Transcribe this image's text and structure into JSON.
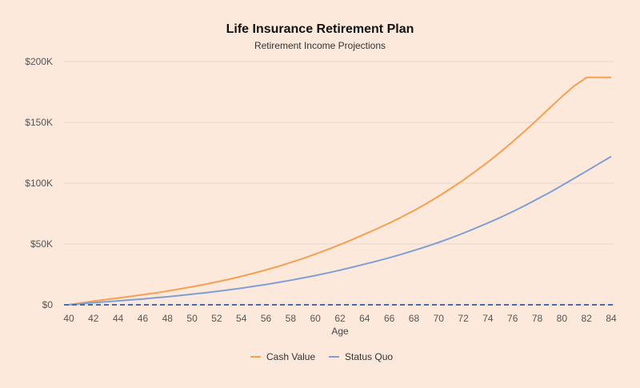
{
  "chart_data": {
    "type": "line",
    "title": "Life Insurance Retirement Plan",
    "subtitle": "Retirement Income Projections",
    "xlabel": "Age",
    "ylabel": "",
    "x": [
      40,
      41,
      42,
      43,
      44,
      45,
      46,
      47,
      48,
      49,
      50,
      51,
      52,
      53,
      54,
      55,
      56,
      57,
      58,
      59,
      60,
      61,
      62,
      63,
      64,
      65,
      66,
      67,
      68,
      69,
      70,
      71,
      72,
      73,
      74,
      75,
      76,
      77,
      78,
      79,
      80,
      81,
      82,
      83,
      84
    ],
    "xticks": [
      40,
      42,
      44,
      46,
      48,
      50,
      52,
      54,
      56,
      58,
      60,
      62,
      64,
      66,
      68,
      70,
      72,
      74,
      76,
      78,
      80,
      82,
      84
    ],
    "xtick_labels": [
      "40",
      "42",
      "44",
      "46",
      "48",
      "50",
      "52",
      "54",
      "56",
      "58",
      "60",
      "62",
      "64",
      "66",
      "68",
      "70",
      "72",
      "74",
      "76",
      "78",
      "80",
      "82",
      "84"
    ],
    "ylim": [
      0,
      200000
    ],
    "yticks": [
      0,
      50000,
      100000,
      150000,
      200000
    ],
    "ytick_labels": [
      "$0",
      "$50K",
      "$100K",
      "$150K",
      "$200K"
    ],
    "grid": true,
    "legend_position": "bottom",
    "series": [
      {
        "name": "Cash Value",
        "color": "#f5a050",
        "values": [
          0,
          1500,
          3000,
          4300,
          5600,
          6900,
          8300,
          9700,
          11300,
          13000,
          14800,
          16700,
          18800,
          21000,
          23400,
          26000,
          28700,
          31600,
          34800,
          38100,
          41700,
          45500,
          49500,
          53700,
          58100,
          62500,
          67200,
          72200,
          77500,
          83200,
          89200,
          95700,
          102500,
          109800,
          117400,
          125500,
          134000,
          142900,
          152200,
          161800,
          171200,
          180000,
          187000,
          187000,
          187000
        ]
      },
      {
        "name": "Status Quo",
        "color": "#7f9fd4",
        "values": [
          0,
          900,
          1700,
          2500,
          3200,
          4000,
          4800,
          5700,
          6600,
          7600,
          8700,
          9800,
          11000,
          12300,
          13700,
          15200,
          16700,
          18400,
          20200,
          22100,
          24100,
          26200,
          28500,
          30900,
          33400,
          36000,
          38700,
          41600,
          44700,
          47900,
          51300,
          55000,
          58900,
          63000,
          67300,
          71800,
          76600,
          81600,
          86900,
          92400,
          98100,
          104000,
          110000,
          116000,
          122000
        ]
      }
    ]
  },
  "reference_line": {
    "value": 0,
    "color": "#4a6aa8"
  }
}
